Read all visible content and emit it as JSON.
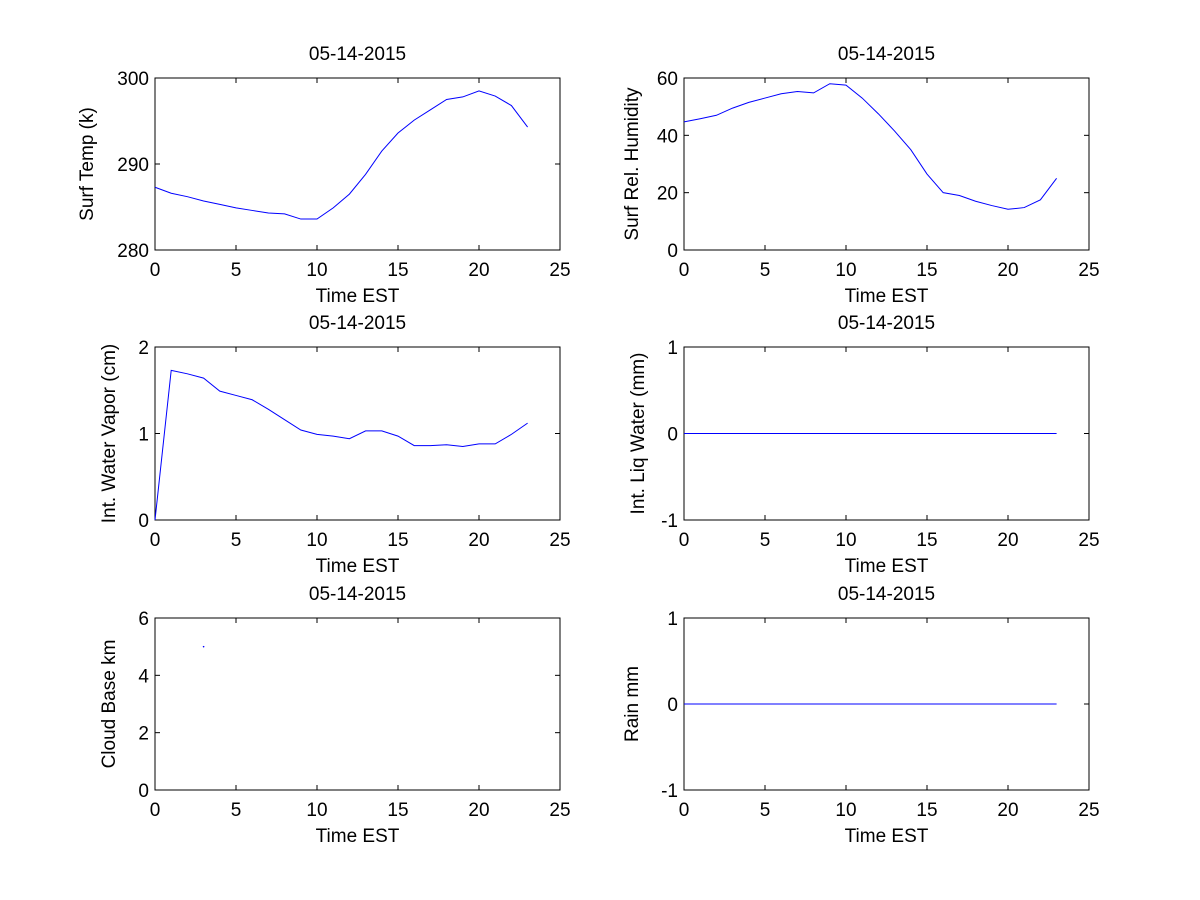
{
  "colors": {
    "line": "#0000ff",
    "axes": "#000000",
    "background": "#ffffff"
  },
  "chart_data": [
    {
      "type": "line",
      "title": "05-14-2015",
      "xlabel": "Time EST",
      "ylabel": "Surf Temp (k)",
      "xlim": [
        0,
        25
      ],
      "ylim": [
        280,
        300
      ],
      "xticks": [
        0,
        5,
        10,
        15,
        20,
        25
      ],
      "yticks": [
        280,
        290,
        300
      ],
      "grid": false,
      "series": [
        {
          "x": [
            0,
            1,
            2,
            3,
            4,
            5,
            6,
            7,
            8,
            9,
            10,
            11,
            12,
            13,
            14,
            15,
            16,
            17,
            18,
            19,
            20,
            21,
            22,
            23
          ],
          "values": [
            287.3,
            286.6,
            286.2,
            285.7,
            285.3,
            284.9,
            284.6,
            284.3,
            284.2,
            283.6,
            283.6,
            284.9,
            286.5,
            288.8,
            291.5,
            293.6,
            295.1,
            296.3,
            297.5,
            297.8,
            298.5,
            297.9,
            296.8,
            294.3
          ]
        }
      ]
    },
    {
      "type": "line",
      "title": "05-14-2015",
      "xlabel": "Time EST",
      "ylabel": "Surf Rel. Humidity",
      "xlim": [
        0,
        25
      ],
      "ylim": [
        0,
        60
      ],
      "xticks": [
        0,
        5,
        10,
        15,
        20,
        25
      ],
      "yticks": [
        0,
        20,
        40,
        60
      ],
      "grid": false,
      "series": [
        {
          "x": [
            0,
            1,
            2,
            3,
            4,
            5,
            6,
            7,
            8,
            9,
            10,
            11,
            12,
            13,
            14,
            15,
            16,
            17,
            18,
            19,
            20,
            21,
            22,
            23
          ],
          "values": [
            44.7,
            45.8,
            47.0,
            49.5,
            51.5,
            53.0,
            54.5,
            55.3,
            54.8,
            58.0,
            57.5,
            53.0,
            47.5,
            41.5,
            35.0,
            26.5,
            20.0,
            19.0,
            17.0,
            15.5,
            14.2,
            14.8,
            17.5,
            25.0
          ]
        }
      ]
    },
    {
      "type": "line",
      "title": "05-14-2015",
      "xlabel": "Time EST",
      "ylabel": "Int. Water Vapor (cm)",
      "xlim": [
        0,
        25
      ],
      "ylim": [
        0,
        2
      ],
      "xticks": [
        0,
        5,
        10,
        15,
        20,
        25
      ],
      "yticks": [
        0,
        1,
        2
      ],
      "grid": false,
      "series": [
        {
          "x": [
            0,
            1,
            2,
            3,
            4,
            5,
            6,
            7,
            8,
            9,
            10,
            11,
            12,
            13,
            14,
            15,
            16,
            17,
            18,
            19,
            20,
            21,
            22,
            23
          ],
          "values": [
            0.0,
            1.73,
            1.69,
            1.64,
            1.49,
            1.44,
            1.39,
            1.28,
            1.16,
            1.04,
            0.99,
            0.97,
            0.94,
            1.03,
            1.03,
            0.97,
            0.86,
            0.86,
            0.87,
            0.85,
            0.88,
            0.88,
            0.99,
            1.12
          ]
        }
      ]
    },
    {
      "type": "line",
      "title": "05-14-2015",
      "xlabel": "Time EST",
      "ylabel": "Int. Liq Water (mm)",
      "xlim": [
        0,
        25
      ],
      "ylim": [
        -1,
        1
      ],
      "xticks": [
        0,
        5,
        10,
        15,
        20,
        25
      ],
      "yticks": [
        -1,
        0,
        1
      ],
      "grid": false,
      "series": [
        {
          "x": [
            0,
            23
          ],
          "values": [
            0,
            0
          ]
        }
      ]
    },
    {
      "type": "scatter",
      "title": "05-14-2015",
      "xlabel": "Time EST",
      "ylabel": "Cloud Base km",
      "xlim": [
        0,
        25
      ],
      "ylim": [
        0,
        6
      ],
      "xticks": [
        0,
        5,
        10,
        15,
        20,
        25
      ],
      "yticks": [
        0,
        2,
        4,
        6
      ],
      "grid": false,
      "series": [
        {
          "x": [
            3
          ],
          "values": [
            5
          ]
        }
      ]
    },
    {
      "type": "line",
      "title": "05-14-2015",
      "xlabel": "Time EST",
      "ylabel": "Rain mm",
      "xlim": [
        0,
        25
      ],
      "ylim": [
        -1,
        1
      ],
      "xticks": [
        0,
        5,
        10,
        15,
        20,
        25
      ],
      "yticks": [
        -1,
        0,
        1
      ],
      "grid": false,
      "series": [
        {
          "x": [
            0,
            23
          ],
          "values": [
            0,
            0
          ]
        }
      ]
    }
  ]
}
